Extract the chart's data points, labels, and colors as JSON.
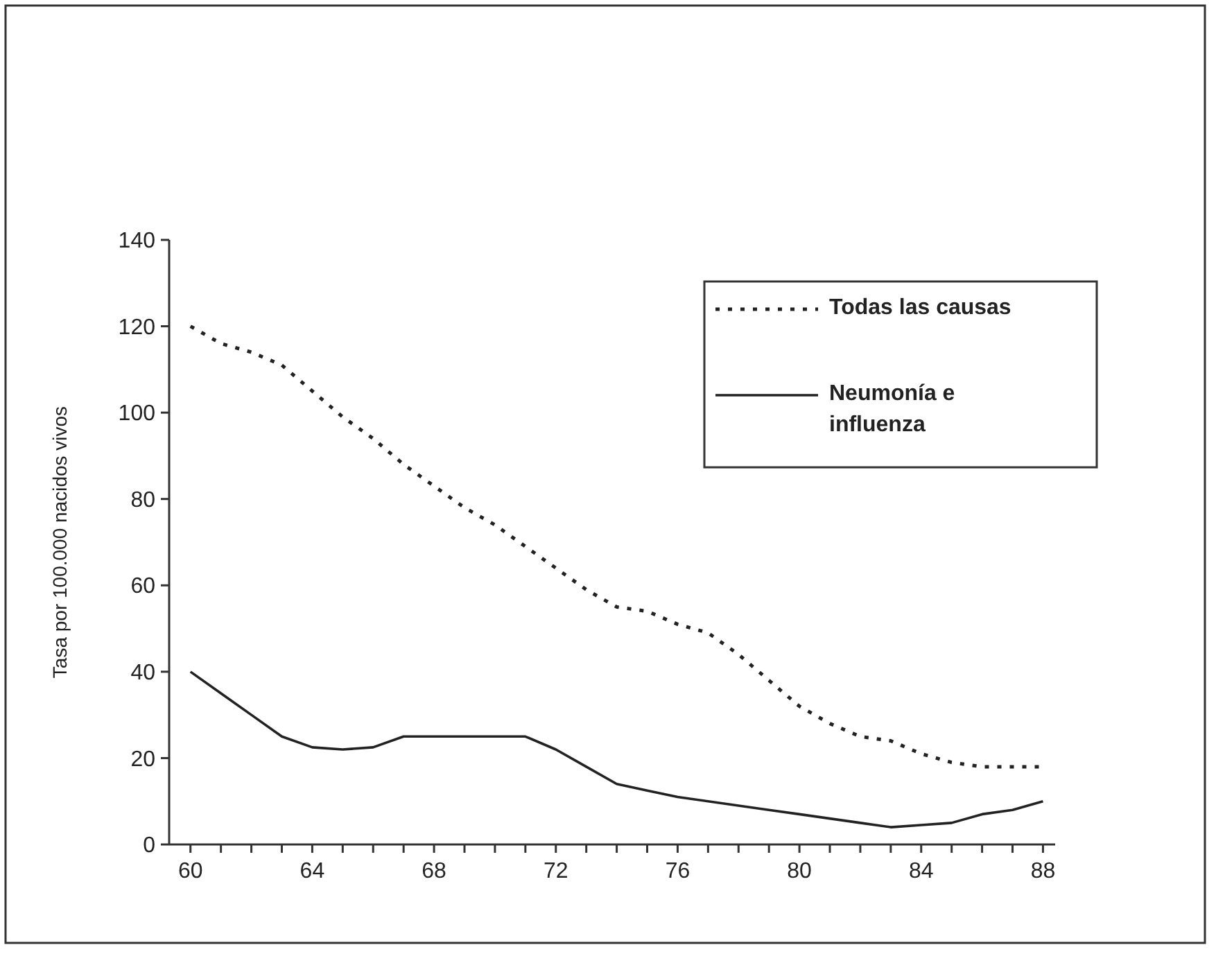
{
  "chart_data": {
    "type": "line",
    "ylabel": "Tasa por 100.000 nacidos vivos",
    "x": [
      60,
      61,
      62,
      63,
      64,
      65,
      66,
      67,
      68,
      69,
      70,
      71,
      72,
      73,
      74,
      75,
      76,
      77,
      78,
      79,
      80,
      81,
      82,
      83,
      84,
      85,
      86,
      87,
      88
    ],
    "series": [
      {
        "name": "Todas las causas",
        "color": "#222222",
        "line_style": "dotted",
        "values": [
          120,
          116,
          114,
          111,
          105,
          99,
          94,
          88,
          83,
          78,
          74,
          69,
          64,
          59,
          55,
          54,
          51,
          49,
          44,
          38,
          32,
          28,
          25,
          24,
          21,
          19,
          18,
          18,
          18
        ]
      },
      {
        "name": "Neumonía e influenza",
        "color": "#222222",
        "line_style": "solid",
        "values": [
          40,
          35,
          30,
          25,
          22.5,
          22,
          22.5,
          25,
          25,
          25,
          25,
          25,
          22,
          18,
          14,
          12.5,
          11,
          10,
          9,
          8,
          7,
          6,
          5,
          4,
          4.5,
          5,
          7,
          8,
          10
        ]
      }
    ],
    "xlim": [
      59.3,
      88.4
    ],
    "xticks": [
      60,
      {
        "value": 61,
        "label": null
      },
      {
        "value": 62,
        "label": null
      },
      {
        "value": 63,
        "label": null
      },
      64,
      {
        "value": 65,
        "label": null
      },
      {
        "value": 66,
        "label": null
      },
      {
        "value": 67,
        "label": null
      },
      68,
      {
        "value": 69,
        "label": null
      },
      {
        "value": 70,
        "label": null
      },
      {
        "value": 71,
        "label": null
      },
      72,
      {
        "value": 73,
        "label": null
      },
      {
        "value": 74,
        "label": null
      },
      {
        "value": 75,
        "label": null
      },
      76,
      {
        "value": 77,
        "label": null
      },
      {
        "value": 78,
        "label": null
      },
      {
        "value": 79,
        "label": null
      },
      80,
      {
        "value": 81,
        "label": null
      },
      {
        "value": 82,
        "label": null
      },
      {
        "value": 83,
        "label": null
      },
      84,
      {
        "value": 85,
        "label": null
      },
      {
        "value": 86,
        "label": null
      },
      {
        "value": 87,
        "label": null
      },
      88
    ],
    "ylim": [
      0,
      140
    ],
    "yticks": [
      0,
      20,
      40,
      60,
      80,
      100,
      120,
      140
    ],
    "legend": "top right",
    "grid": false
  }
}
